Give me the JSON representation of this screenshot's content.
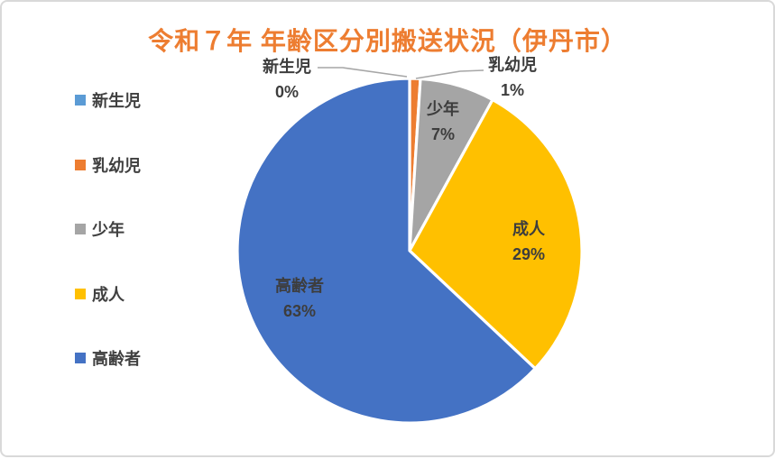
{
  "frame": {
    "background": "#ffffff",
    "border_color": "#d9d9d9"
  },
  "title": {
    "text": "令和７年 年齢区分別搬送状況（伊丹市）",
    "color": "#ED7D31"
  },
  "chart_data": {
    "type": "pie",
    "title": "令和７年 年齢区分別搬送状況（伊丹市）",
    "categories": [
      "新生児",
      "乳幼児",
      "少年",
      "成人",
      "高齢者"
    ],
    "values": [
      0,
      1,
      7,
      29,
      63
    ],
    "unit": "%",
    "colors": [
      "#5B9BD5",
      "#ED7D31",
      "#A5A5A5",
      "#FFC000",
      "#4472C4"
    ],
    "start_angle_deg": 0,
    "direction": "clockwise",
    "slice_border_color": "#ffffff",
    "leader_line_color": "#A6A6A6",
    "legend_position": "left",
    "data_labels": [
      {
        "category": "新生児",
        "percent": "0%",
        "placement": "outside-top-left"
      },
      {
        "category": "乳幼児",
        "percent": "1%",
        "placement": "outside-top-right"
      },
      {
        "category": "少年",
        "percent": "7%",
        "placement": "inside"
      },
      {
        "category": "成人",
        "percent": "29%",
        "placement": "inside"
      },
      {
        "category": "高齢者",
        "percent": "63%",
        "placement": "inside"
      }
    ]
  },
  "legend": {
    "items": [
      {
        "label": "新生児",
        "color": "#5B9BD5"
      },
      {
        "label": "乳幼児",
        "color": "#ED7D31"
      },
      {
        "label": "少年",
        "color": "#A5A5A5"
      },
      {
        "label": "成人",
        "color": "#FFC000"
      },
      {
        "label": "高齢者",
        "color": "#4472C4"
      }
    ]
  }
}
